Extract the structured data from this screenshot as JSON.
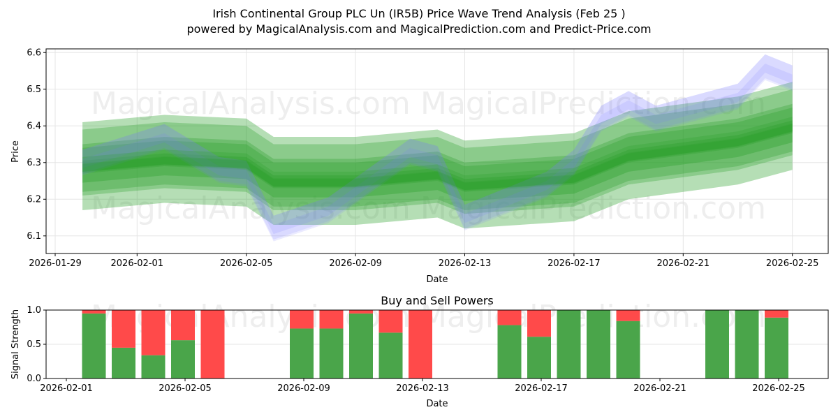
{
  "title_line1": "Irish Continental Group PLC Un (IR5B) Price Wave Trend Analysis (Feb 25 )",
  "title_line2": "powered by MagicalAnalysis.com and MagicalPrediction.com and Predict-Price.com",
  "watermarks": [
    "MagicalAnalysis.com",
    "MagicalPrediction.com"
  ],
  "colors": {
    "green": "#2ca02c",
    "blue": "#7777ff",
    "buy": "#4aa54a",
    "sell": "#ff4a4a"
  },
  "chart_data": [
    {
      "type": "area",
      "title": "",
      "xlabel": "Date",
      "ylabel": "Price",
      "ylim": [
        6.052,
        6.61
      ],
      "xticks": [
        "2026-01-29",
        "2026-02-01",
        "2026-02-05",
        "2026-02-09",
        "2026-02-13",
        "2026-02-17",
        "2026-02-21",
        "2026-02-25"
      ],
      "yticks": [
        6.1,
        6.2,
        6.3,
        6.4,
        6.5,
        6.6
      ],
      "series": [
        {
          "name": "trend-band",
          "x": [
            "2026-01-30",
            "2026-02-02",
            "2026-02-05",
            "2026-02-06",
            "2026-02-09",
            "2026-02-12",
            "2026-02-13",
            "2026-02-17",
            "2026-02-19",
            "2026-02-23",
            "2026-02-25"
          ],
          "values": [
            6.29,
            6.31,
            6.3,
            6.25,
            6.25,
            6.27,
            6.24,
            6.26,
            6.32,
            6.36,
            6.4
          ]
        },
        {
          "name": "price-wave",
          "x": [
            "2026-01-30",
            "2026-02-02",
            "2026-02-04",
            "2026-02-05",
            "2026-02-06",
            "2026-02-08",
            "2026-02-11",
            "2026-02-12",
            "2026-02-13",
            "2026-02-16",
            "2026-02-17",
            "2026-02-18",
            "2026-02-19",
            "2026-02-20",
            "2026-02-23",
            "2026-02-24",
            "2026-02-25"
          ],
          "values": [
            6.3,
            6.37,
            6.28,
            6.27,
            6.12,
            6.17,
            6.33,
            6.31,
            6.15,
            6.24,
            6.3,
            6.42,
            6.46,
            6.42,
            6.48,
            6.56,
            6.53
          ]
        }
      ]
    },
    {
      "type": "bar",
      "title": "Buy and Sell Powers",
      "xlabel": "Date",
      "ylabel": "Signal Strength",
      "ylim": [
        0,
        1
      ],
      "yticks": [
        "0.0",
        "0.5",
        "1.0"
      ],
      "xticks": [
        "2026-02-01",
        "2026-02-05",
        "2026-02-09",
        "2026-02-13",
        "2026-02-17",
        "2026-02-21",
        "2026-02-25"
      ],
      "categories": [
        "2026-02-02",
        "2026-02-03",
        "2026-02-04",
        "2026-02-05",
        "2026-02-06",
        "2026-02-09",
        "2026-02-10",
        "2026-02-11",
        "2026-02-12",
        "2026-02-13",
        "2026-02-16",
        "2026-02-17",
        "2026-02-18",
        "2026-02-19",
        "2026-02-20",
        "2026-02-23",
        "2026-02-24",
        "2026-02-25"
      ],
      "series": [
        {
          "name": "Buy",
          "values": [
            0.95,
            0.45,
            0.34,
            0.56,
            0,
            0.73,
            0.73,
            0.95,
            0.67,
            0,
            0.78,
            0.61,
            1,
            1,
            0.84,
            1,
            1,
            0.89
          ]
        },
        {
          "name": "Sell",
          "values": [
            0.05,
            0.55,
            0.66,
            0.44,
            1,
            0.27,
            0.27,
            0.05,
            0.33,
            1,
            0.22,
            0.39,
            0,
            0,
            0.16,
            0,
            0,
            0.11
          ]
        }
      ]
    }
  ]
}
